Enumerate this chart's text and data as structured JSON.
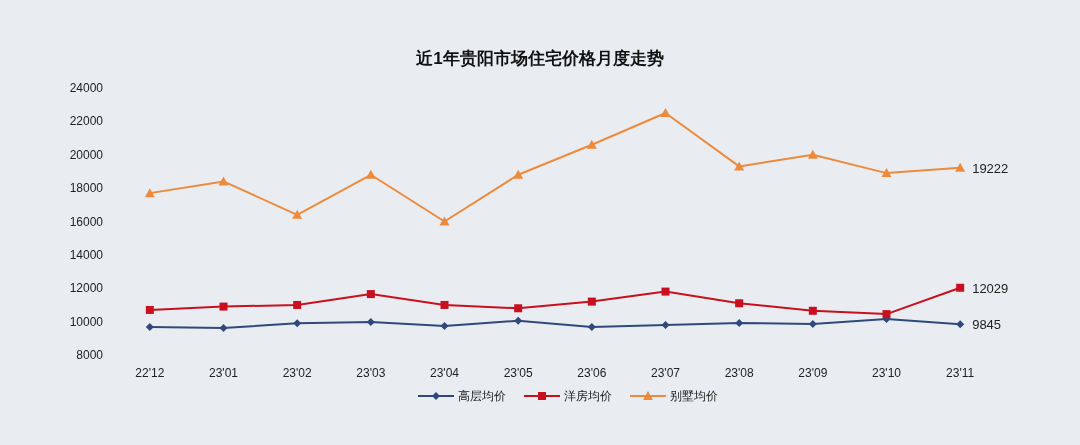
{
  "chart_data": {
    "type": "line",
    "title": "近1年贵阳市场住宅价格月度走势",
    "categories": [
      "22'12",
      "23'01",
      "23'02",
      "23'03",
      "23'04",
      "23'05",
      "23'06",
      "23'07",
      "23'08",
      "23'09",
      "23'10",
      "23'11"
    ],
    "series": [
      {
        "name": "高层均价",
        "color": "#2f4a7a",
        "marker": "diamond",
        "values": [
          9680,
          9620,
          9900,
          9980,
          9740,
          10050,
          9680,
          9800,
          9920,
          9860,
          10150,
          9845
        ],
        "value_labels": [
          null,
          null,
          null,
          null,
          null,
          null,
          null,
          null,
          null,
          null,
          null,
          "9845"
        ]
      },
      {
        "name": "洋房均价",
        "color": "#c8101e",
        "marker": "square",
        "values": [
          10700,
          10900,
          11000,
          11650,
          11000,
          10800,
          11200,
          11800,
          11100,
          10650,
          10450,
          12029
        ],
        "value_labels": [
          null,
          null,
          null,
          null,
          null,
          null,
          null,
          null,
          null,
          null,
          null,
          "12029"
        ]
      },
      {
        "name": "别墅均价",
        "color": "#ee8a3c",
        "marker": "triangle",
        "values": [
          17700,
          18400,
          16400,
          18800,
          16000,
          18800,
          20600,
          22500,
          19300,
          20000,
          18900,
          19222
        ],
        "value_labels": [
          null,
          null,
          null,
          null,
          null,
          null,
          null,
          null,
          null,
          null,
          null,
          "19222"
        ]
      }
    ],
    "ylim": [
      8000,
      24000
    ],
    "yticks": [
      8000,
      10000,
      12000,
      14000,
      16000,
      18000,
      20000,
      22000,
      24000
    ],
    "legend": "bottom"
  }
}
